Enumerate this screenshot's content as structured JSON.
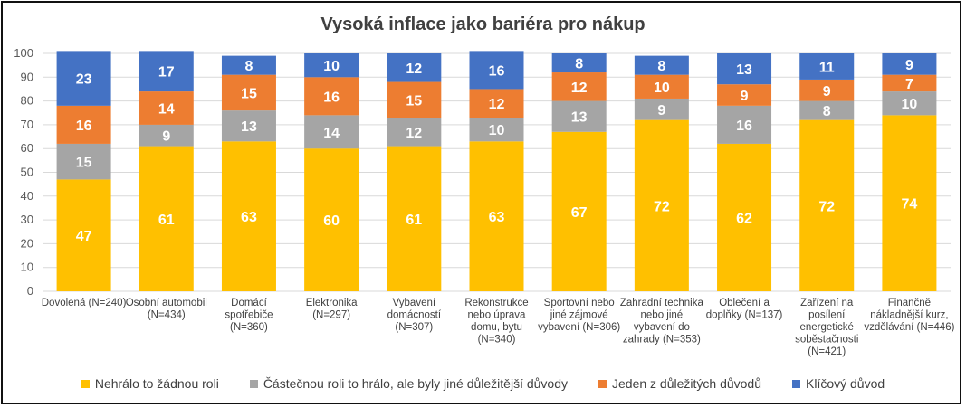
{
  "chart_data": {
    "type": "bar",
    "stacked": true,
    "title": "Vysoká inflace jako bariéra pro nákup",
    "ylim": [
      0,
      100
    ],
    "yticks": [
      "0",
      "10",
      "20",
      "30",
      "40",
      "50",
      "60",
      "70",
      "80",
      "90",
      "100"
    ],
    "grid": true,
    "legend_position": "bottom",
    "categories": [
      [
        "Dovolená (N=240)"
      ],
      [
        "Osobní automobil",
        "(N=434)"
      ],
      [
        "Domácí",
        "spotřebiče",
        "(N=360)"
      ],
      [
        "Elektronika",
        "(N=297)"
      ],
      [
        "Vybavení",
        "domácností",
        "(N=307)"
      ],
      [
        "Rekonstrukce",
        "nebo úprava",
        "domu, bytu",
        "(N=340)"
      ],
      [
        "Sportovní nebo",
        "jiné zájmové",
        "vybavení (N=306)"
      ],
      [
        "Zahradní technika",
        "nebo jiné",
        "vybavení do",
        "zahrady (N=353)"
      ],
      [
        "Oblečení a",
        "doplňky (N=137)"
      ],
      [
        "Zařízení na",
        "posílení",
        "energetické",
        "soběstačnosti",
        "(N=421)"
      ],
      [
        "Finančně",
        "nákladnější kurz,",
        "vzdělávání (N=446)"
      ]
    ],
    "series": [
      {
        "name": "Nehrálo to žádnou roli",
        "color": "#FFC000",
        "values": [
          47,
          61,
          63,
          60,
          61,
          63,
          67,
          72,
          62,
          72,
          74
        ]
      },
      {
        "name": "Částečnou roli to hrálo, ale byly jiné důležitější důvody",
        "color": "#A5A5A5",
        "values": [
          15,
          9,
          13,
          14,
          12,
          10,
          13,
          9,
          16,
          8,
          10
        ]
      },
      {
        "name": "Jeden z důležitých důvodů",
        "color": "#ED7D31",
        "values": [
          16,
          14,
          15,
          16,
          15,
          12,
          12,
          10,
          9,
          9,
          7
        ]
      },
      {
        "name": "Klíčový důvod",
        "color": "#4472C4",
        "values": [
          23,
          17,
          8,
          10,
          12,
          16,
          8,
          8,
          13,
          11,
          9
        ]
      }
    ]
  }
}
